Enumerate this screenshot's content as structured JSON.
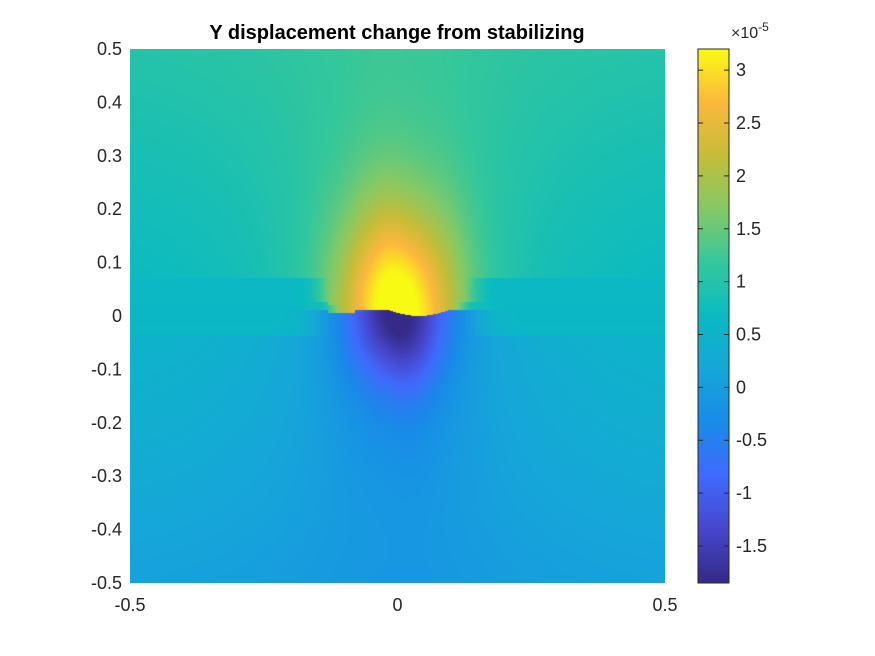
{
  "chart_data": {
    "type": "heatmap",
    "title": "Y displacement change from stabilizing",
    "xlim": [
      -0.5,
      0.5
    ],
    "ylim": [
      -0.5,
      0.5
    ],
    "x_ticks": [
      {
        "value": -0.5,
        "label": "-0.5"
      },
      {
        "value": 0,
        "label": "0"
      },
      {
        "value": 0.5,
        "label": "0.5"
      }
    ],
    "y_ticks": [
      {
        "value": 0.5,
        "label": "0.5"
      },
      {
        "value": 0.4,
        "label": "0.4"
      },
      {
        "value": 0.3,
        "label": "0.3"
      },
      {
        "value": 0.2,
        "label": "0.2"
      },
      {
        "value": 0.1,
        "label": "0.1"
      },
      {
        "value": 0,
        "label": "0"
      },
      {
        "value": -0.1,
        "label": "-0.1"
      },
      {
        "value": -0.2,
        "label": "-0.2"
      },
      {
        "value": -0.3,
        "label": "-0.3"
      },
      {
        "value": -0.4,
        "label": "-0.4"
      },
      {
        "value": -0.5,
        "label": "-0.5"
      }
    ],
    "colorbar": {
      "colormap": "parula",
      "range": [
        -1.85,
        3.2
      ],
      "exponent_base": "×10",
      "exponent_power": "-5",
      "ticks": [
        {
          "value": 3,
          "label": "3"
        },
        {
          "value": 2.5,
          "label": "2.5"
        },
        {
          "value": 2,
          "label": "2"
        },
        {
          "value": 1.5,
          "label": "1.5"
        },
        {
          "value": 1,
          "label": "1"
        },
        {
          "value": 0.5,
          "label": "0.5"
        },
        {
          "value": 0,
          "label": "0"
        },
        {
          "value": -0.5,
          "label": "-0.5"
        },
        {
          "value": -1,
          "label": "-1"
        },
        {
          "value": -1.5,
          "label": "-1.5"
        }
      ]
    },
    "field": {
      "background": 0.6,
      "upper_edge": 1.0,
      "lower_edge": 0.15,
      "peak_above": {
        "x": 0.0,
        "y": 0.03,
        "value": 3.2
      },
      "trough_below": {
        "x": 0.0,
        "y": -0.03,
        "value": -1.85
      },
      "interface_x_extent": [
        -0.12,
        0.12
      ]
    },
    "grid": false,
    "legend": "none"
  }
}
